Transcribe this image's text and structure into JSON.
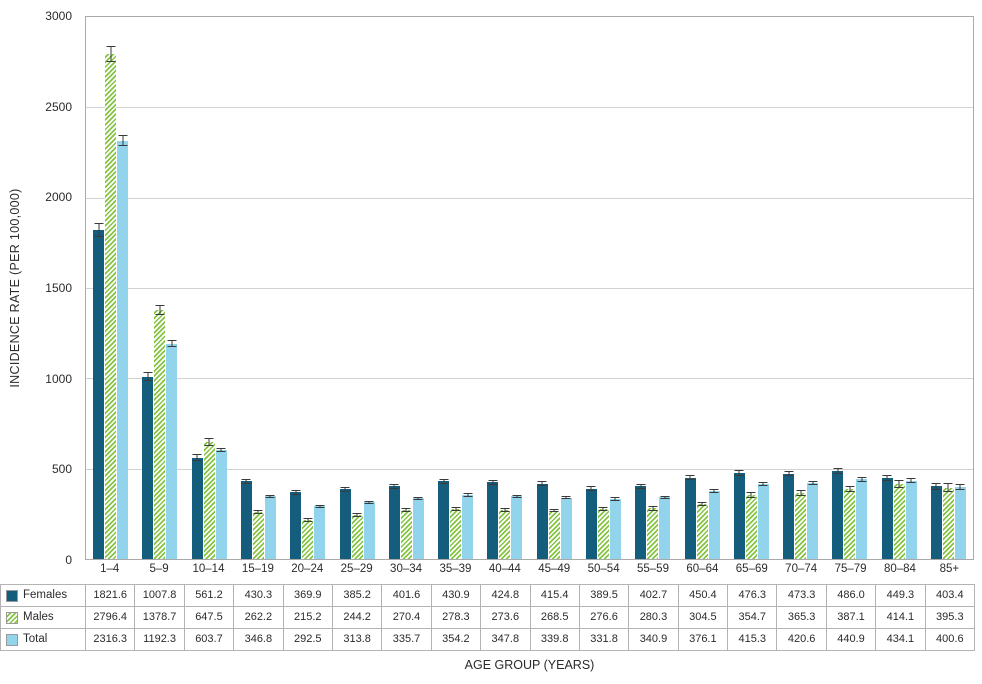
{
  "chart_data": {
    "type": "bar",
    "title": "",
    "xlabel": "AGE GROUP (YEARS)",
    "ylabel": "INCIDENCE RATE (PER 100,000)",
    "ylim": [
      0,
      3000
    ],
    "yticks": [
      0,
      500,
      1000,
      1500,
      2000,
      2500,
      3000
    ],
    "grid": true,
    "legend_position": "table-left",
    "error_bars": true,
    "categories": [
      "1–4",
      "5–9",
      "10–14",
      "15–19",
      "20–24",
      "25–29",
      "30–34",
      "35–39",
      "40–44",
      "45–49",
      "50–54",
      "55–59",
      "60–64",
      "65–69",
      "70–74",
      "75–79",
      "80–84",
      "85+"
    ],
    "series": [
      {
        "name": "Females",
        "color": "#145d7c",
        "pattern": "solid",
        "values": [
          1821.6,
          1007.8,
          561.2,
          430.3,
          369.9,
          385.2,
          401.6,
          430.9,
          424.8,
          415.4,
          389.5,
          402.7,
          450.4,
          476.3,
          473.3,
          486.0,
          449.3,
          403.4
        ],
        "errors": [
          40,
          25,
          18,
          14,
          13,
          13,
          13,
          14,
          14,
          14,
          13,
          14,
          15,
          16,
          16,
          18,
          18,
          19
        ]
      },
      {
        "name": "Males",
        "color": "#85c441",
        "pattern": "diagonal-hatch",
        "values": [
          2796.4,
          1378.7,
          647.5,
          262.2,
          215.2,
          244.2,
          270.4,
          278.3,
          273.6,
          268.5,
          276.6,
          280.3,
          304.5,
          354.7,
          365.3,
          387.1,
          414.1,
          395.3
        ],
        "errors": [
          45,
          30,
          20,
          11,
          10,
          11,
          11,
          12,
          11,
          11,
          12,
          12,
          13,
          15,
          16,
          18,
          21,
          26
        ]
      },
      {
        "name": "Total",
        "color": "#92d4eb",
        "pattern": "solid",
        "values": [
          2316.3,
          1192.3,
          603.7,
          346.8,
          292.5,
          313.8,
          335.7,
          354.2,
          347.8,
          339.8,
          331.8,
          340.9,
          376.1,
          415.3,
          420.6,
          440.9,
          434.1,
          400.6
        ],
        "errors": [
          30,
          19,
          13,
          9,
          8,
          8,
          9,
          9,
          9,
          9,
          9,
          9,
          10,
          11,
          11,
          13,
          14,
          16
        ]
      }
    ]
  }
}
